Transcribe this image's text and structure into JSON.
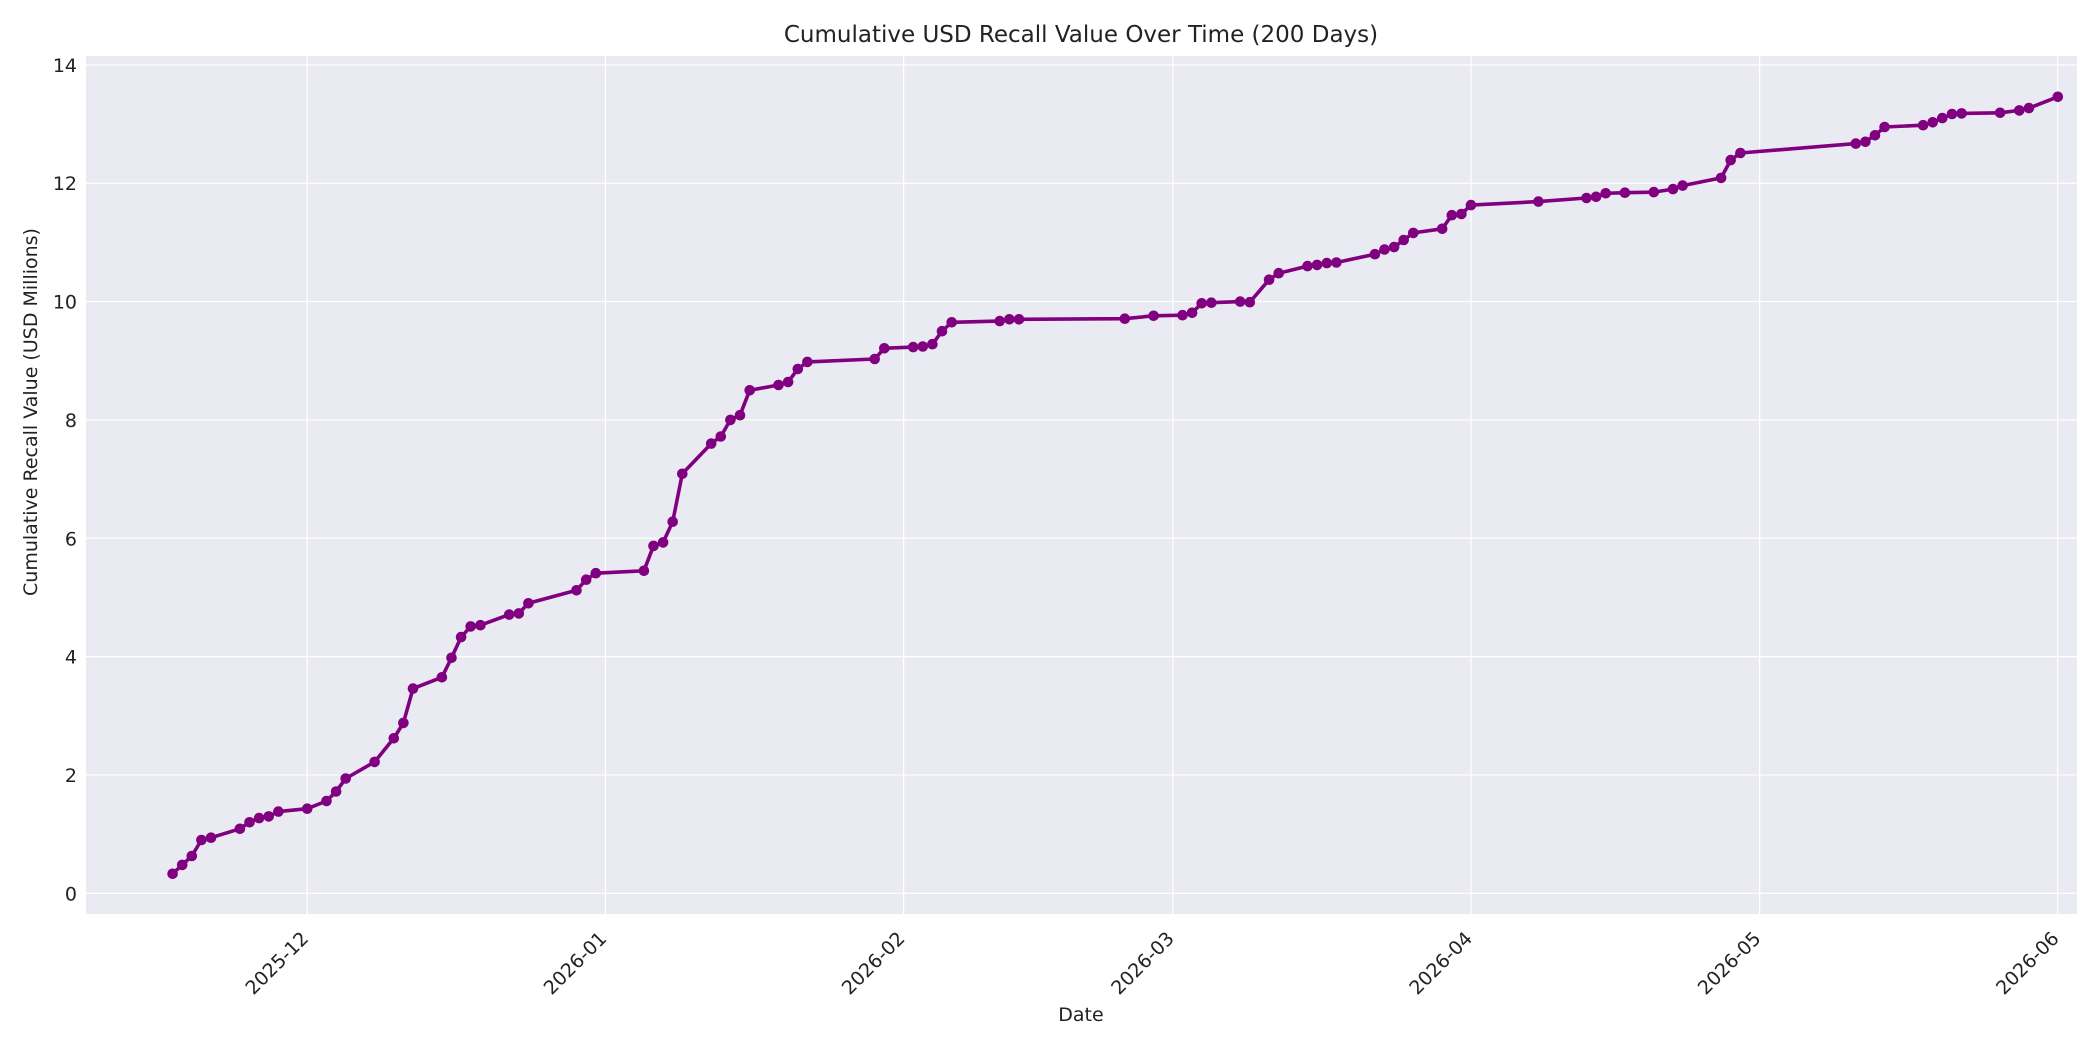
{
  "chart_data": {
    "type": "line",
    "title": "Cumulative USD Recall Value Over Time (200 Days)",
    "xlabel": "Date",
    "ylabel": "Cumulative Recall Value (USD Millions)",
    "x_ticks": [
      "2025-12",
      "2026-01",
      "2026-02",
      "2026-03",
      "2026-04",
      "2026-05",
      "2026-06"
    ],
    "y_ticks": [
      "0",
      "2",
      "4",
      "6",
      "8",
      "10",
      "12",
      "14"
    ],
    "xlim": [
      "2025-11-08",
      "2026-06-03"
    ],
    "ylim": [
      -0.35,
      14.15
    ],
    "grid": true,
    "colors": {
      "line": "#800080",
      "plot_bg": "#eaeaf2",
      "grid": "#ffffff"
    },
    "series": [
      {
        "x": [
          "2025-11-17",
          "2025-11-18",
          "2025-11-19",
          "2025-11-20",
          "2025-11-21",
          "2025-11-24",
          "2025-11-25",
          "2025-11-26",
          "2025-11-27",
          "2025-11-28",
          "2025-12-01",
          "2025-12-03",
          "2025-12-04",
          "2025-12-05",
          "2025-12-08",
          "2025-12-10",
          "2025-12-11",
          "2025-12-12",
          "2025-12-15",
          "2025-12-16",
          "2025-12-17",
          "2025-12-18",
          "2025-12-19",
          "2025-12-22",
          "2025-12-23",
          "2025-12-24",
          "2025-12-29",
          "2025-12-30",
          "2025-12-31",
          "2026-01-05",
          "2026-01-06",
          "2026-01-07",
          "2026-01-08",
          "2026-01-09",
          "2026-01-12",
          "2026-01-13",
          "2026-01-14",
          "2026-01-15",
          "2026-01-16",
          "2026-01-19",
          "2026-01-20",
          "2026-01-21",
          "2026-01-22",
          "2026-01-29",
          "2026-01-30",
          "2026-02-02",
          "2026-02-03",
          "2026-02-04",
          "2026-02-05",
          "2026-02-06",
          "2026-02-11",
          "2026-02-12",
          "2026-02-13",
          "2026-02-24",
          "2026-02-27",
          "2026-03-02",
          "2026-03-03",
          "2026-03-04",
          "2026-03-05",
          "2026-03-08",
          "2026-03-09",
          "2026-03-11",
          "2026-03-12",
          "2026-03-15",
          "2026-03-16",
          "2026-03-17",
          "2026-03-18",
          "2026-03-22",
          "2026-03-23",
          "2026-03-24",
          "2026-03-25",
          "2026-03-26",
          "2026-03-29",
          "2026-03-30",
          "2026-03-31",
          "2026-04-01",
          "2026-04-08",
          "2026-04-13",
          "2026-04-14",
          "2026-04-15",
          "2026-04-17",
          "2026-04-20",
          "2026-04-22",
          "2026-04-23",
          "2026-04-27",
          "2026-04-28",
          "2026-04-29",
          "2026-05-11",
          "2026-05-12",
          "2026-05-13",
          "2026-05-14",
          "2026-05-18",
          "2026-05-19",
          "2026-05-20",
          "2026-05-21",
          "2026-05-22",
          "2026-05-26",
          "2026-05-28",
          "2026-05-29",
          "2026-06-01"
        ],
        "y": [
          0.33,
          0.48,
          0.63,
          0.9,
          0.94,
          1.09,
          1.2,
          1.27,
          1.3,
          1.38,
          1.43,
          1.56,
          1.72,
          1.94,
          2.22,
          2.62,
          2.88,
          3.46,
          3.65,
          3.98,
          4.33,
          4.51,
          4.53,
          4.71,
          4.73,
          4.9,
          5.12,
          5.3,
          5.41,
          5.45,
          5.87,
          5.93,
          6.28,
          7.09,
          7.6,
          7.72,
          8.0,
          8.08,
          8.5,
          8.59,
          8.64,
          8.86,
          8.98,
          9.03,
          9.21,
          9.23,
          9.24,
          9.28,
          9.5,
          9.65,
          9.67,
          9.7,
          9.7,
          9.71,
          9.76,
          9.77,
          9.81,
          9.97,
          9.98,
          10.0,
          9.99,
          10.37,
          10.48,
          10.6,
          10.62,
          10.65,
          10.66,
          10.8,
          10.88,
          10.92,
          11.04,
          11.16,
          11.23,
          11.46,
          11.48,
          11.63,
          11.69,
          11.75,
          11.77,
          11.83,
          11.84,
          11.85,
          11.9,
          11.96,
          12.09,
          12.39,
          12.51,
          12.67,
          12.7,
          12.81,
          12.95,
          12.98,
          13.03,
          13.1,
          13.17,
          13.18,
          13.19,
          13.23,
          13.27,
          13.46
        ]
      }
    ]
  }
}
